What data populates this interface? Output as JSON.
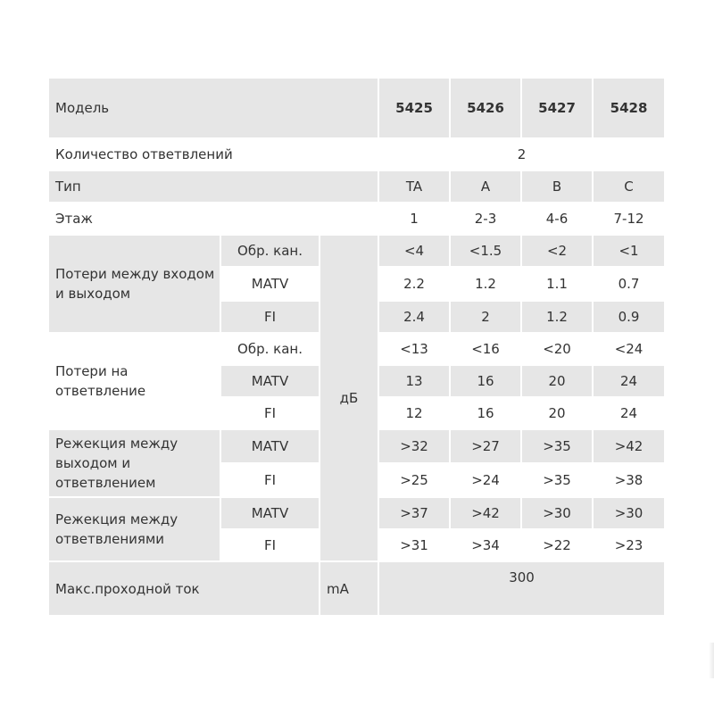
{
  "table": {
    "header": {
      "label": "Модель",
      "models": [
        "5425",
        "5426",
        "5427",
        "5428"
      ]
    },
    "branches": {
      "label": "Количество ответвлений",
      "value": "2"
    },
    "type": {
      "label": "Тип",
      "values": [
        "TA",
        "A",
        "B",
        "C"
      ]
    },
    "floor": {
      "label": "Этаж",
      "values": [
        "1",
        "2-3",
        "4-6",
        "7-12"
      ]
    },
    "unit_db": "дБ",
    "loss_in_out": {
      "label": "Потери между входом и выходом",
      "rows": [
        {
          "sub": "Обр. кан.",
          "values": [
            "<4",
            "<1.5",
            "<2",
            "<1"
          ]
        },
        {
          "sub": "MATV",
          "values": [
            "2.2",
            "1.2",
            "1.1",
            "0.7"
          ]
        },
        {
          "sub": "FI",
          "values": [
            "2.4",
            "2",
            "1.2",
            "0.9"
          ]
        }
      ]
    },
    "loss_tap": {
      "label": "Потери на ответвление",
      "rows": [
        {
          "sub": "Обр. кан.",
          "values": [
            "<13",
            "<16",
            "<20",
            "<24"
          ]
        },
        {
          "sub": "MATV",
          "values": [
            "13",
            "16",
            "20",
            "24"
          ]
        },
        {
          "sub": "FI",
          "values": [
            "12",
            "16",
            "20",
            "24"
          ]
        }
      ]
    },
    "rej_out_tap": {
      "label": "Режекция между выходом и ответвлением",
      "rows": [
        {
          "sub": "MATV",
          "values": [
            ">32",
            ">27",
            ">35",
            ">42"
          ]
        },
        {
          "sub": "FI",
          "values": [
            ">25",
            ">24",
            ">35",
            ">38"
          ]
        }
      ]
    },
    "rej_taps": {
      "label": "Режекция между ответвлениями",
      "rows": [
        {
          "sub": "MATV",
          "values": [
            ">37",
            ">42",
            ">30",
            ">30"
          ]
        },
        {
          "sub": "FI",
          "values": [
            ">31",
            ">34",
            ">22",
            ">23"
          ]
        }
      ]
    },
    "max_current": {
      "label": "Макс.проходной ток",
      "unit": "mA",
      "value": "300"
    }
  }
}
